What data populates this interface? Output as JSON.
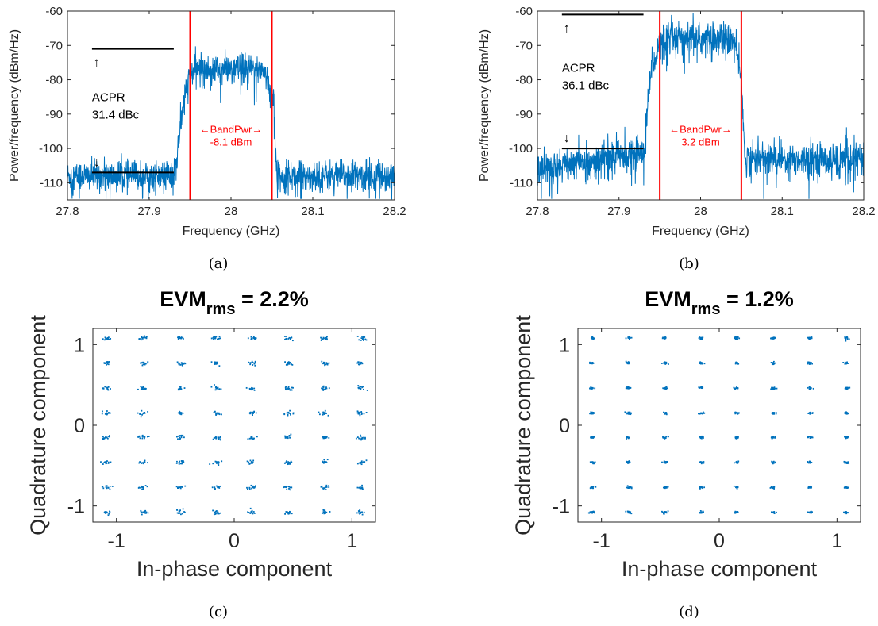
{
  "chart_data": [
    {
      "panel": "a",
      "type": "line",
      "caption": "(a)",
      "xlabel": "Frequency (GHz)",
      "ylabel": "Power/frequency (dBm/Hz)",
      "xlim": [
        27.8,
        28.2
      ],
      "ylim": [
        -115,
        -60
      ],
      "xticks": [
        27.8,
        27.9,
        28,
        28.1,
        28.2
      ],
      "xtick_labels": [
        "27.8",
        "27.9",
        "28",
        "28.1",
        "28.2"
      ],
      "yticks": [
        -110,
        -100,
        -90,
        -80,
        -70,
        -60
      ],
      "ytick_labels": [
        "-110",
        "-100",
        "-90",
        "-80",
        "-70",
        "-60"
      ],
      "grid": false,
      "color": "#0072BD",
      "spectrum": {
        "segments": [
          {
            "x0": 27.8,
            "x1": 27.93,
            "y0": -108,
            "y1": -108
          },
          {
            "x0": 27.93,
            "x1": 27.945,
            "y0": -108,
            "y1": -82
          },
          {
            "x0": 27.945,
            "x1": 27.955,
            "y0": -82,
            "y1": -77
          },
          {
            "x0": 27.955,
            "x1": 28.04,
            "y0": -77,
            "y1": -77
          },
          {
            "x0": 28.04,
            "x1": 28.052,
            "y0": -77,
            "y1": -85
          },
          {
            "x0": 28.052,
            "x1": 28.056,
            "y0": -85,
            "y1": -108
          },
          {
            "x0": 28.056,
            "x1": 28.2,
            "y0": -108,
            "y1": -108
          }
        ],
        "noise": 2.2
      },
      "band_lines": [
        27.95,
        28.05
      ],
      "band_label": {
        "text": "←BandPwr→",
        "value": "-8.1 dBm"
      },
      "reference_lines": [
        {
          "x0": 27.83,
          "x1": 27.93,
          "y": -71
        },
        {
          "x0": 27.83,
          "x1": 27.93,
          "y": -107
        }
      ],
      "acpr": {
        "label": "ACPR",
        "value": "31.4 dBc",
        "up_arrow": "↑",
        "down_arrow": "↓"
      }
    },
    {
      "panel": "b",
      "type": "line",
      "caption": "(b)",
      "xlabel": "Frequency (GHz)",
      "ylabel": "Power/frequency (dBm/Hz)",
      "xlim": [
        27.8,
        28.2
      ],
      "ylim": [
        -115,
        -60
      ],
      "xticks": [
        27.8,
        27.9,
        28,
        28.1,
        28.2
      ],
      "xtick_labels": [
        "27.8",
        "27.9",
        "28",
        "28.1",
        "28.2"
      ],
      "yticks": [
        -110,
        -100,
        -90,
        -80,
        -70,
        -60
      ],
      "ytick_labels": [
        "-110",
        "-100",
        "-90",
        "-80",
        "-70",
        "-60"
      ],
      "grid": false,
      "color": "#0072BD",
      "spectrum": {
        "segments": [
          {
            "x0": 27.8,
            "x1": 27.93,
            "y0": -106,
            "y1": -101
          },
          {
            "x0": 27.93,
            "x1": 27.94,
            "y0": -101,
            "y1": -75
          },
          {
            "x0": 27.94,
            "x1": 27.955,
            "y0": -75,
            "y1": -68
          },
          {
            "x0": 27.955,
            "x1": 28.04,
            "y0": -68,
            "y1": -68
          },
          {
            "x0": 28.04,
            "x1": 28.05,
            "y0": -68,
            "y1": -78
          },
          {
            "x0": 28.05,
            "x1": 28.054,
            "y0": -78,
            "y1": -103
          },
          {
            "x0": 28.054,
            "x1": 28.2,
            "y0": -103,
            "y1": -103
          }
        ],
        "noise": 2.4
      },
      "band_lines": [
        27.95,
        28.05
      ],
      "band_label": {
        "text": "←BandPwr→",
        "value": "3.2 dBm"
      },
      "reference_lines": [
        {
          "x0": 27.83,
          "x1": 27.93,
          "y": -61
        },
        {
          "x0": 27.83,
          "x1": 27.93,
          "y": -100
        }
      ],
      "acpr": {
        "label": "ACPR",
        "value": "36.1 dBc",
        "up_arrow": "↑",
        "down_arrow": "↓"
      }
    },
    {
      "panel": "c",
      "type": "scatter",
      "caption": "(c)",
      "title": "EVM",
      "title_sub": "rms",
      "title_value": " = 2.2%",
      "xlabel": "In-phase component",
      "ylabel": "Quadrature component",
      "xlim": [
        -1.2,
        1.2
      ],
      "ylim": [
        -1.2,
        1.2
      ],
      "xticks": [
        -1,
        0,
        1
      ],
      "xtick_labels": [
        "-1",
        "0",
        "1"
      ],
      "yticks": [
        -1,
        0,
        1
      ],
      "ytick_labels": [
        "-1",
        "0",
        "1"
      ],
      "grid": false,
      "color": "#0072BD",
      "constellation_levels": [
        -1.08,
        -0.77,
        -0.46,
        -0.15,
        0.15,
        0.46,
        0.77,
        1.08
      ],
      "evm_rms_percent": 2.2
    },
    {
      "panel": "d",
      "type": "scatter",
      "caption": "(d)",
      "title": "EVM",
      "title_sub": "rms",
      "title_value": " = 1.2%",
      "xlabel": "In-phase component",
      "ylabel": "Quadrature component",
      "xlim": [
        -1.2,
        1.2
      ],
      "ylim": [
        -1.2,
        1.2
      ],
      "xticks": [
        -1,
        0,
        1
      ],
      "xtick_labels": [
        "-1",
        "0",
        "1"
      ],
      "yticks": [
        -1,
        0,
        1
      ],
      "ytick_labels": [
        "-1",
        "0",
        "1"
      ],
      "grid": false,
      "color": "#0072BD",
      "constellation_levels": [
        -1.08,
        -0.77,
        -0.46,
        -0.15,
        0.15,
        0.46,
        0.77,
        1.08
      ],
      "evm_rms_percent": 1.2
    }
  ]
}
